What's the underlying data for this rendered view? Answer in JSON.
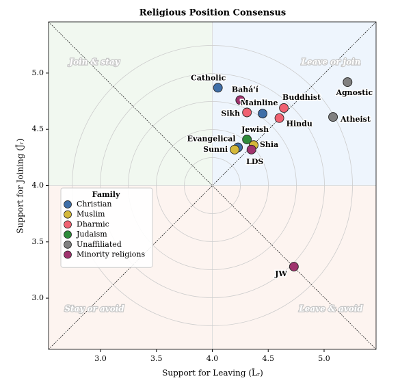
{
  "chart_data": {
    "type": "scatter",
    "title": "Religious Position Consensus",
    "x_label": "Support for Leaving (L̄ᵣ)",
    "y_label": "Support for Joining (J̄ᵣ)",
    "xlim": [
      2.535,
      5.465
    ],
    "ylim": [
      2.545,
      5.455
    ],
    "xticks": [
      {
        "value": 3,
        "label": "3.0"
      },
      {
        "value": 3.5,
        "label": "3.5"
      },
      {
        "value": 4,
        "label": "4.0"
      },
      {
        "value": 4.5,
        "label": "4.5"
      },
      {
        "value": 5,
        "label": "5.0"
      }
    ],
    "yticks": [
      {
        "value": 3,
        "label": "3.0"
      },
      {
        "value": 3.5,
        "label": "3.5"
      },
      {
        "value": 4,
        "label": "4.0"
      },
      {
        "value": 4.5,
        "label": "4.5"
      },
      {
        "value": 5,
        "label": "5.0"
      }
    ],
    "legend_title": "Family",
    "legend_position": "center left",
    "quadrant_labels": [
      "Join & stay",
      "Leave or join",
      "Stay or avoid",
      "Leave & avoid"
    ],
    "series": [
      {
        "name": "Christian",
        "color": "#3f6fa8",
        "labels": [
          "Catholic",
          "Mainline",
          "Evangelical"
        ],
        "x": [
          4.05,
          4.45,
          4.23
        ],
        "values": [
          4.87,
          4.64,
          4.34
        ]
      },
      {
        "name": "Muslim",
        "color": "#d4b83a",
        "labels": [
          "Sunni",
          "Shia"
        ],
        "x": [
          4.2,
          4.37
        ],
        "values": [
          4.32,
          4.36
        ]
      },
      {
        "name": "Dharmic",
        "color": "#f06272",
        "labels": [
          "Buddhist",
          "Sikh",
          "Hindu"
        ],
        "x": [
          4.64,
          4.31,
          4.6
        ],
        "values": [
          4.69,
          4.65,
          4.6
        ]
      },
      {
        "name": "Judaism",
        "color": "#2e8b3a",
        "labels": [
          "Jewish"
        ],
        "x": [
          4.31
        ],
        "values": [
          4.41
        ]
      },
      {
        "name": "Unaffiliated",
        "color": "#808080",
        "labels": [
          "Agnostic",
          "Atheist"
        ],
        "x": [
          5.21,
          5.08
        ],
        "values": [
          4.92,
          4.61
        ]
      },
      {
        "name": "Minority religions",
        "color": "#a0336e",
        "labels": [
          "Bahá'í",
          "LDS",
          "JW"
        ],
        "x": [
          4.25,
          4.35,
          4.73
        ],
        "values": [
          4.76,
          4.32,
          3.28
        ]
      }
    ]
  }
}
